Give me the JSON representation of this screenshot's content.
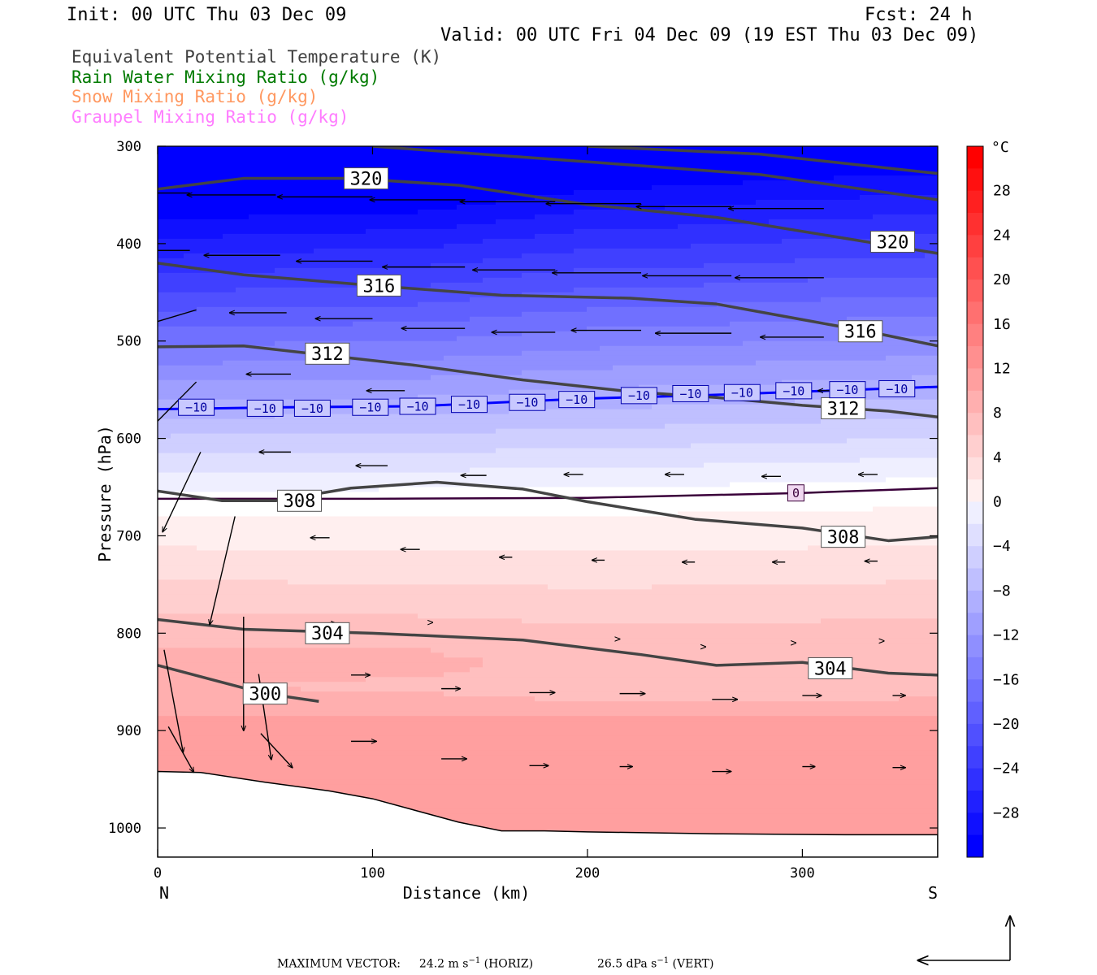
{
  "header": {
    "init": "Init: 00 UTC Thu 03 Dec 09",
    "fcst": "Fcst:   24 h",
    "valid": "Valid: 00 UTC Fri 04 Dec 09 (19 EST Thu 03 Dec 09)"
  },
  "legend": [
    {
      "label": "Equivalent Potential Temperature (K)",
      "color": "#404040"
    },
    {
      "label": "Rain Water Mixing Ratio (g/kg)",
      "color": "#007a00"
    },
    {
      "label": "Snow Mixing Ratio (g/kg)",
      "color": "#ff9860"
    },
    {
      "label": "Graupel Mixing Ratio (g/kg)",
      "color": "#ff7cff"
    }
  ],
  "chart_data": {
    "type": "cross-section",
    "xlabel": "Distance (km)",
    "ylabel": "Pressure (hPa)",
    "x_ticks": [
      0,
      100,
      200,
      300
    ],
    "xlim": [
      0,
      363
    ],
    "y_ticks": [
      300,
      400,
      500,
      600,
      700,
      800,
      900,
      1000
    ],
    "ylim": [
      300,
      1030
    ],
    "y_scale": "linear-inverted",
    "left_end": "N",
    "right_end": "S",
    "colorbar": {
      "unit": "°C",
      "range": [
        -32,
        32
      ],
      "step": 2,
      "labels": [
        28,
        24,
        20,
        16,
        12,
        8,
        4,
        0,
        -4,
        -8,
        -12,
        -16,
        -20,
        -24,
        -28
      ],
      "cold_color": "#0000ff",
      "warm_color": "#ff0000"
    },
    "theta_e_contours": [
      {
        "value": 300,
        "points": [
          [
            0,
            833
          ],
          [
            50,
            862
          ],
          [
            75,
            870
          ]
        ]
      },
      {
        "value": 304,
        "points": [
          [
            0,
            786
          ],
          [
            40,
            796
          ],
          [
            100,
            800
          ],
          [
            170,
            807
          ],
          [
            225,
            822
          ],
          [
            260,
            833
          ],
          [
            300,
            830
          ],
          [
            340,
            841
          ],
          [
            363,
            843
          ]
        ]
      },
      {
        "value": 308,
        "points": [
          [
            0,
            654
          ],
          [
            30,
            664
          ],
          [
            55,
            664
          ],
          [
            90,
            651
          ],
          [
            130,
            645
          ],
          [
            170,
            652
          ],
          [
            200,
            665
          ],
          [
            250,
            683
          ],
          [
            300,
            692
          ],
          [
            340,
            705
          ],
          [
            363,
            701
          ]
        ]
      },
      {
        "value": 312,
        "points": [
          [
            0,
            506
          ],
          [
            40,
            505
          ],
          [
            80,
            515
          ],
          [
            120,
            525
          ],
          [
            170,
            540
          ],
          [
            220,
            552
          ],
          [
            260,
            558
          ],
          [
            300,
            566
          ],
          [
            340,
            572
          ],
          [
            363,
            578
          ]
        ]
      },
      {
        "value": 316,
        "points": [
          [
            0,
            420
          ],
          [
            40,
            432
          ],
          [
            100,
            443
          ],
          [
            160,
            453
          ],
          [
            220,
            456
          ],
          [
            260,
            462
          ],
          [
            300,
            478
          ],
          [
            330,
            490
          ],
          [
            363,
            505
          ]
        ]
      },
      {
        "value": 320,
        "points": [
          [
            0,
            344
          ],
          [
            40,
            333
          ],
          [
            90,
            333
          ],
          [
            140,
            340
          ],
          [
            200,
            360
          ],
          [
            260,
            373
          ],
          [
            310,
            391
          ],
          [
            363,
            410
          ]
        ]
      },
      {
        "value": 324,
        "points": [
          [
            100,
            300
          ],
          [
            200,
            316
          ],
          [
            280,
            329
          ],
          [
            363,
            355
          ]
        ]
      },
      {
        "value": 328,
        "points": [
          [
            200,
            300
          ],
          [
            280,
            308
          ],
          [
            363,
            328
          ]
        ]
      }
    ],
    "isotherms": [
      {
        "value": -10,
        "points": [
          [
            0,
            570
          ],
          [
            60,
            568
          ],
          [
            120,
            567
          ],
          [
            150,
            564
          ],
          [
            200,
            559
          ],
          [
            250,
            556
          ],
          [
            300,
            552
          ],
          [
            363,
            547
          ]
        ]
      },
      {
        "value": 0,
        "points": [
          [
            0,
            662
          ],
          [
            100,
            662
          ],
          [
            200,
            661
          ],
          [
            300,
            656
          ],
          [
            363,
            651
          ]
        ]
      }
    ],
    "isotherm_labels": [
      {
        "value": -10,
        "positions": [
          [
            18,
            568
          ],
          [
            50,
            569
          ],
          [
            72,
            569
          ],
          [
            99,
            568
          ],
          [
            121,
            567
          ],
          [
            145,
            565
          ],
          [
            172,
            563
          ],
          [
            195,
            560
          ],
          [
            224,
            556
          ],
          [
            248,
            554
          ],
          [
            272,
            553
          ],
          [
            296,
            551
          ],
          [
            321,
            550
          ],
          [
            344,
            549
          ]
        ]
      },
      {
        "value": 0,
        "positions": [
          [
            297,
            656
          ]
        ]
      }
    ],
    "terrain": [
      [
        0,
        942
      ],
      [
        20,
        943
      ],
      [
        50,
        953
      ],
      [
        80,
        962
      ],
      [
        100,
        970
      ],
      [
        120,
        982
      ],
      [
        140,
        994
      ],
      [
        160,
        1003
      ],
      [
        180,
        1003
      ],
      [
        200,
        1004
      ],
      [
        260,
        1006
      ],
      [
        320,
        1007
      ],
      [
        363,
        1007
      ]
    ],
    "wind_vectors": [
      {
        "x": 15,
        "p": 348,
        "u": -12,
        "w": 0
      },
      {
        "x": 55,
        "p": 350,
        "u": -14,
        "w": 0
      },
      {
        "x": 100,
        "p": 352,
        "u": -15,
        "w": 0
      },
      {
        "x": 143,
        "p": 355,
        "u": -15,
        "w": 0
      },
      {
        "x": 185,
        "p": 357,
        "u": -15,
        "w": 0
      },
      {
        "x": 225,
        "p": 359,
        "u": -15,
        "w": 0
      },
      {
        "x": 267,
        "p": 362,
        "u": -15,
        "w": 0
      },
      {
        "x": 310,
        "p": 364,
        "u": -15,
        "w": 0
      },
      {
        "x": 15,
        "p": 407,
        "u": -12,
        "w": 0
      },
      {
        "x": 57,
        "p": 412,
        "u": -12,
        "w": 0
      },
      {
        "x": 100,
        "p": 418,
        "u": -12,
        "w": 0
      },
      {
        "x": 143,
        "p": 424,
        "u": -13,
        "w": 0
      },
      {
        "x": 185,
        "p": 427,
        "u": -13,
        "w": 0
      },
      {
        "x": 225,
        "p": 430,
        "u": -14,
        "w": 0
      },
      {
        "x": 267,
        "p": 433,
        "u": -14,
        "w": 0
      },
      {
        "x": 310,
        "p": 435,
        "u": -14,
        "w": 0
      },
      {
        "x": 18,
        "p": 468,
        "u": -9,
        "w": 3
      },
      {
        "x": 60,
        "p": 471,
        "u": -9,
        "w": 0
      },
      {
        "x": 100,
        "p": 477,
        "u": -9,
        "w": 0
      },
      {
        "x": 143,
        "p": 487,
        "u": -10,
        "w": 0
      },
      {
        "x": 185,
        "p": 491,
        "u": -10,
        "w": 0
      },
      {
        "x": 225,
        "p": 489,
        "u": -11,
        "w": 0
      },
      {
        "x": 267,
        "p": 492,
        "u": -12,
        "w": 0
      },
      {
        "x": 310,
        "p": 496,
        "u": -10,
        "w": 0
      },
      {
        "x": 18,
        "p": 542,
        "u": -8,
        "w": 9
      },
      {
        "x": 62,
        "p": 534,
        "u": -7,
        "w": 0
      },
      {
        "x": 115,
        "p": 551,
        "u": -6,
        "w": 0
      },
      {
        "x": 325,
        "p": 551,
        "u": -6,
        "w": 0
      },
      {
        "x": 20,
        "p": 614,
        "u": -6,
        "w": 14
      },
      {
        "x": 62,
        "p": 614,
        "u": -5,
        "w": 0
      },
      {
        "x": 107,
        "p": 628,
        "u": -5,
        "w": 0
      },
      {
        "x": 153,
        "p": 638,
        "u": -4,
        "w": 0
      },
      {
        "x": 198,
        "p": 637,
        "u": -3,
        "w": 0
      },
      {
        "x": 245,
        "p": 637,
        "u": -3,
        "w": 0
      },
      {
        "x": 290,
        "p": 639,
        "u": -3,
        "w": 0
      },
      {
        "x": 335,
        "p": 637,
        "u": -3,
        "w": 0
      },
      {
        "x": 36,
        "p": 680,
        "u": -4,
        "w": 19
      },
      {
        "x": 80,
        "p": 702,
        "u": -3,
        "w": 0
      },
      {
        "x": 122,
        "p": 714,
        "u": -3,
        "w": 0
      },
      {
        "x": 165,
        "p": 722,
        "u": -2,
        "w": 0
      },
      {
        "x": 208,
        "p": 725,
        "u": -2,
        "w": 0
      },
      {
        "x": 250,
        "p": 727,
        "u": -2,
        "w": 0
      },
      {
        "x": 292,
        "p": 727,
        "u": -2,
        "w": 0
      },
      {
        "x": 335,
        "p": 726,
        "u": -2,
        "w": 0
      },
      {
        "x": 40,
        "p": 783,
        "u": 0,
        "w": 20
      },
      {
        "x": 83,
        "p": 790,
        "u": 0,
        "w": 0
      },
      {
        "x": 128,
        "p": 789,
        "u": 0,
        "w": 0
      },
      {
        "x": 215,
        "p": 806,
        "u": 0,
        "w": 0
      },
      {
        "x": 255,
        "p": 814,
        "u": 0,
        "w": 0
      },
      {
        "x": 297,
        "p": 810,
        "u": 0,
        "w": 0
      },
      {
        "x": 338,
        "p": 808,
        "u": 0,
        "w": 0
      },
      {
        "x": 3,
        "p": 817,
        "u": 3,
        "w": 18
      },
      {
        "x": 47,
        "p": 842,
        "u": 2,
        "w": 15
      },
      {
        "x": 90,
        "p": 843,
        "u": 3,
        "w": 0
      },
      {
        "x": 132,
        "p": 857,
        "u": 3,
        "w": 0
      },
      {
        "x": 173,
        "p": 861,
        "u": 4,
        "w": 0
      },
      {
        "x": 215,
        "p": 862,
        "u": 4,
        "w": 0
      },
      {
        "x": 258,
        "p": 868,
        "u": 4,
        "w": 0
      },
      {
        "x": 300,
        "p": 864,
        "u": 3,
        "w": 0
      },
      {
        "x": 342,
        "p": 864,
        "u": 2,
        "w": 0
      },
      {
        "x": 5,
        "p": 896,
        "u": 4,
        "w": 8
      },
      {
        "x": 48,
        "p": 903,
        "u": 5,
        "w": 6
      },
      {
        "x": 90,
        "p": 911,
        "u": 4,
        "w": 0
      },
      {
        "x": 132,
        "p": 929,
        "u": 4,
        "w": 0
      },
      {
        "x": 173,
        "p": 936,
        "u": 3,
        "w": 0
      },
      {
        "x": 215,
        "p": 937,
        "u": 2,
        "w": 0
      },
      {
        "x": 258,
        "p": 942,
        "u": 3,
        "w": 0
      },
      {
        "x": 300,
        "p": 937,
        "u": 2,
        "w": 0
      },
      {
        "x": 342,
        "p": 938,
        "u": 2,
        "w": 0
      }
    ],
    "max_vector": {
      "label": "MAXIMUM VECTOR:",
      "horiz_value": "24.2",
      "horiz_unit": "m s",
      "horiz_exp": "−1",
      "horiz_tag": "(HORIZ)",
      "vert_value": "26.5",
      "vert_unit": "dPa s",
      "vert_exp": "−1",
      "vert_tag": "(VERT)"
    }
  }
}
